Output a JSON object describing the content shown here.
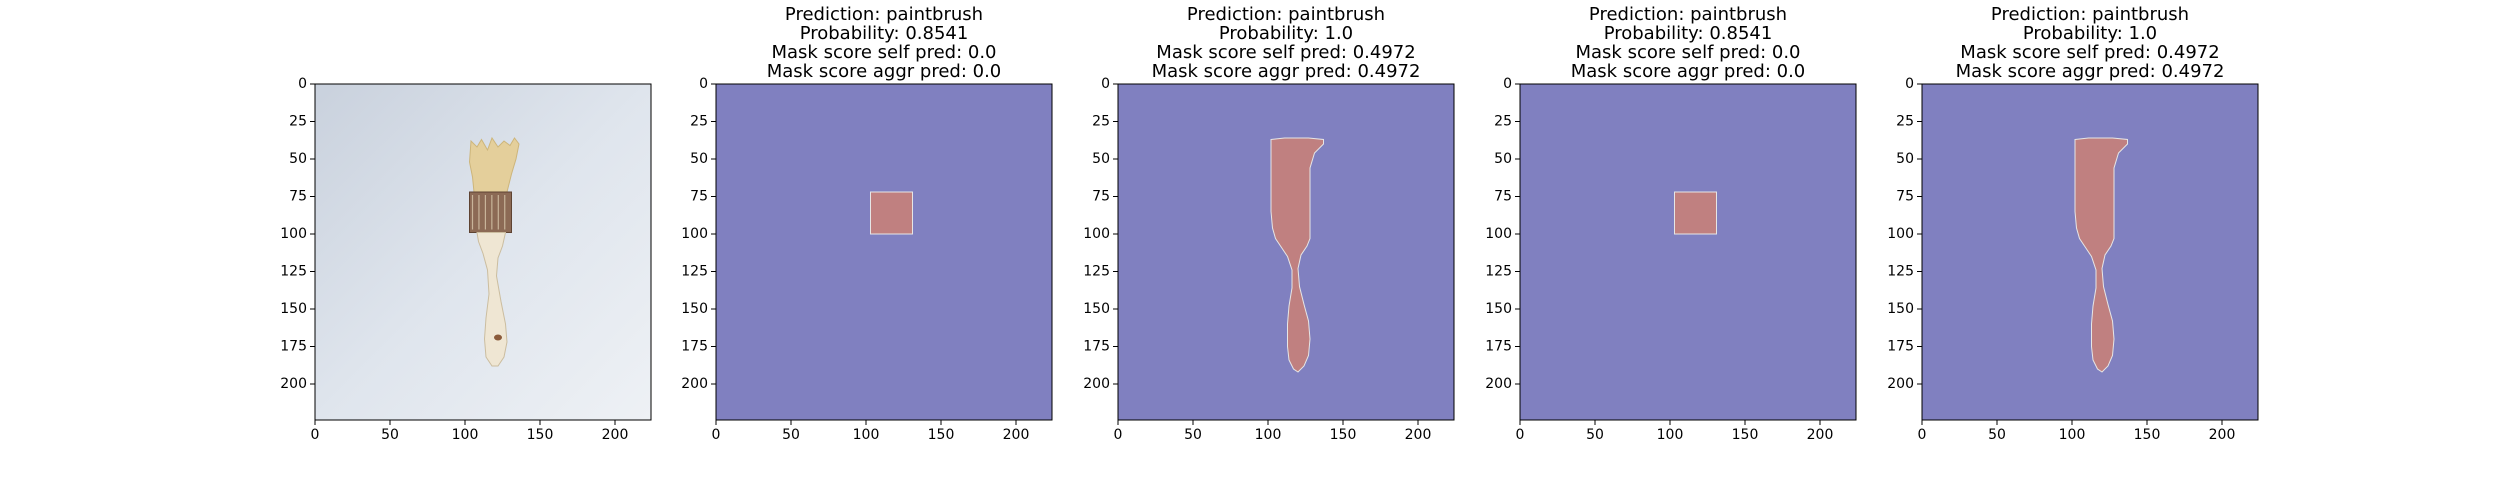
{
  "chart_data": [
    {
      "type": "image",
      "content": "photograph-paintbrush",
      "title_lines": [],
      "xticks": [
        0,
        50,
        100,
        150,
        200
      ],
      "yticks": [
        0,
        25,
        50,
        75,
        100,
        125,
        150,
        175,
        200
      ],
      "xlim": [
        0,
        224
      ],
      "ylim": [
        224,
        0
      ]
    },
    {
      "type": "heatmap",
      "content": "mask-box",
      "title_lines": [
        "Prediction: paintbrush",
        "Probability: 0.8541",
        "Mask score self pred: 0.0",
        "Mask score aggr pred: 0.0"
      ],
      "xticks": [
        0,
        50,
        100,
        150,
        200
      ],
      "yticks": [
        0,
        25,
        50,
        75,
        100,
        125,
        150,
        175,
        200
      ],
      "xlim": [
        0,
        224
      ],
      "ylim": [
        224,
        0
      ],
      "mask_region": {
        "x": [
          103,
          131
        ],
        "y": [
          72,
          100
        ]
      },
      "colors": {
        "background": "#8080c0",
        "mask": "#c08080"
      }
    },
    {
      "type": "heatmap",
      "content": "mask-brush",
      "title_lines": [
        "Prediction: paintbrush",
        "Probability: 1.0",
        "Mask score self pred: 0.4972",
        "Mask score aggr pred: 0.4972"
      ],
      "xticks": [
        0,
        50,
        100,
        150,
        200
      ],
      "yticks": [
        0,
        25,
        50,
        75,
        100,
        125,
        150,
        175,
        200
      ],
      "xlim": [
        0,
        224
      ],
      "ylim": [
        224,
        0
      ],
      "colors": {
        "background": "#8080c0",
        "mask": "#c08080"
      }
    },
    {
      "type": "heatmap",
      "content": "mask-box",
      "title_lines": [
        "Prediction: paintbrush",
        "Probability: 0.8541",
        "Mask score self pred: 0.0",
        "Mask score aggr pred: 0.0"
      ],
      "xticks": [
        0,
        50,
        100,
        150,
        200
      ],
      "yticks": [
        0,
        25,
        50,
        75,
        100,
        125,
        150,
        175,
        200
      ],
      "xlim": [
        0,
        224
      ],
      "ylim": [
        224,
        0
      ],
      "mask_region": {
        "x": [
          103,
          131
        ],
        "y": [
          72,
          100
        ]
      },
      "colors": {
        "background": "#8080c0",
        "mask": "#c08080"
      }
    },
    {
      "type": "heatmap",
      "content": "mask-brush",
      "title_lines": [
        "Prediction: paintbrush",
        "Probability: 1.0",
        "Mask score self pred: 0.4972",
        "Mask score aggr pred: 0.4972"
      ],
      "xticks": [
        0,
        50,
        100,
        150,
        200
      ],
      "yticks": [
        0,
        25,
        50,
        75,
        100,
        125,
        150,
        175,
        200
      ],
      "xlim": [
        0,
        224
      ],
      "ylim": [
        224,
        0
      ],
      "colors": {
        "background": "#8080c0",
        "mask": "#c08080"
      }
    }
  ]
}
